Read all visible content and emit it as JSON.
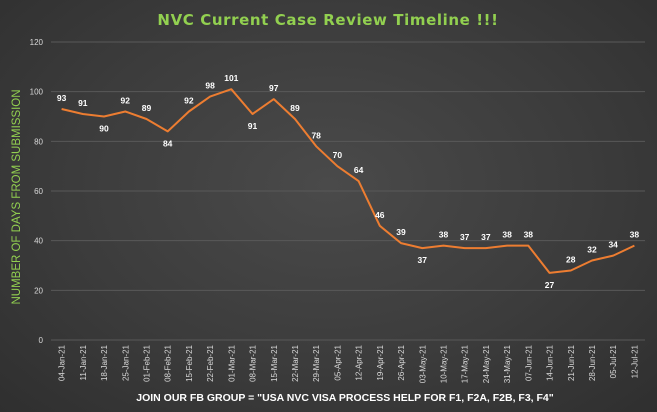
{
  "chart_data": {
    "type": "line",
    "title": "NVC Current Case Review Timeline !!!",
    "ylabel": "NUMBER OF DAYS FROM SUBMISSION",
    "xlabel": "JOIN OUR FB GROUP = \"USA NVC VISA PROCESS HELP FOR F1, F2A, F2B, F3, F4\"",
    "ylim": [
      0,
      120
    ],
    "yticks": [
      0,
      20,
      40,
      60,
      80,
      100,
      120
    ],
    "grid": true,
    "categories": [
      "04-Jan-21",
      "11-Jan-21",
      "18-Jan-21",
      "25-Jan-21",
      "01-Feb-21",
      "08-Feb-21",
      "15-Feb-21",
      "22-Feb-21",
      "01-Mar-21",
      "08-Mar-21",
      "15-Mar-21",
      "22-Mar-21",
      "29-Mar-21",
      "05-Apr-21",
      "12-Apr-21",
      "19-Apr-21",
      "26-Apr-21",
      "03-May-21",
      "10-May-21",
      "17-May-21",
      "24-May-21",
      "31-May-21",
      "07-Jun-21",
      "14-Jun-21",
      "21-Jun-21",
      "28-Jun-21",
      "05-Jul-21",
      "12-Jul-21"
    ],
    "series": [
      {
        "values": [
          93,
          91,
          90,
          92,
          89,
          84,
          92,
          98,
          101,
          91,
          97,
          89,
          78,
          70,
          64,
          46,
          39,
          37,
          38,
          37,
          37,
          38,
          38,
          27,
          28,
          32,
          34,
          38
        ]
      }
    ],
    "colors": {
      "line": "#ed7d31",
      "title": "#92d050",
      "ylabel": "#92d050",
      "xlabel": "#ffffff",
      "grid": "#595959"
    }
  }
}
